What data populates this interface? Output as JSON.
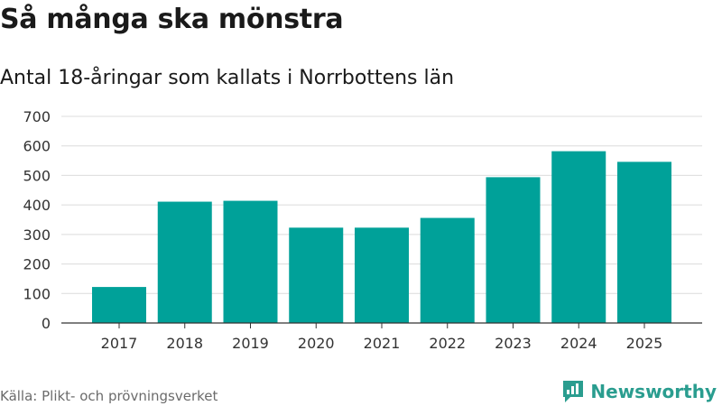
{
  "title": "Så många ska mönstra",
  "subtitle": "Antal 18-åringar som kallats i Norrbottens län",
  "source": "Källa: Plikt- och prövningsverket",
  "brand": {
    "name": "Newsworthy",
    "icon": "newsworthy-logo-icon",
    "color": "#2a9d8f"
  },
  "chart_data": {
    "type": "bar",
    "categories": [
      "2017",
      "2018",
      "2019",
      "2020",
      "2021",
      "2022",
      "2023",
      "2024",
      "2025"
    ],
    "values": [
      122,
      411,
      414,
      323,
      323,
      356,
      494,
      582,
      546
    ],
    "ylim": [
      0,
      700
    ],
    "yticks": [
      0,
      100,
      200,
      300,
      400,
      500,
      600,
      700
    ],
    "grid": true,
    "bar_color": "#00a199",
    "xlabel": "",
    "ylabel": ""
  }
}
